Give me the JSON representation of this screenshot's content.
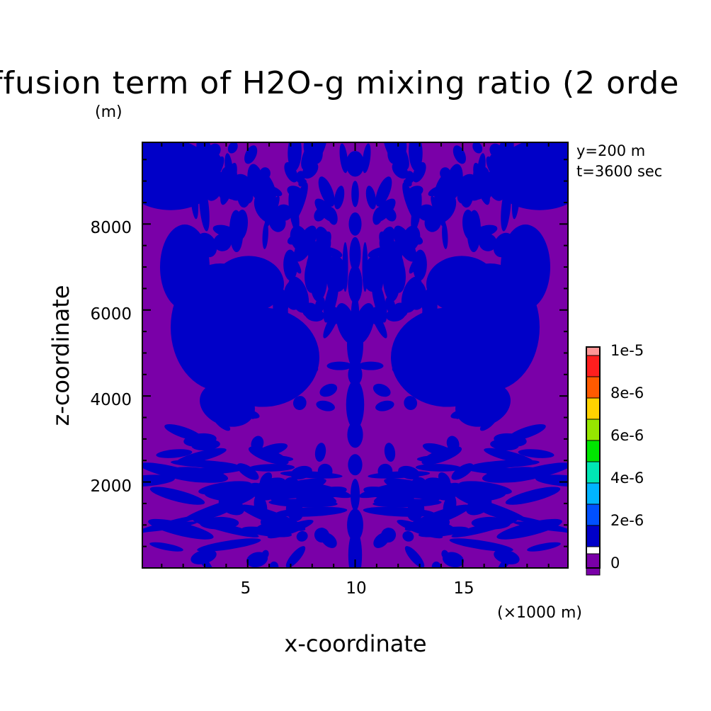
{
  "chart_data": {
    "type": "heatmap",
    "title": "ffusion term of H2O-g mixing ratio (2 orde",
    "ylabel": "z-coordinate",
    "yunit": "(m)",
    "xlabel": "x-coordinate",
    "xunit": "(×1000 m)",
    "annotations": [
      "y=200 m",
      "t=3600 sec"
    ],
    "xlim": [
      0.1,
      19.9
    ],
    "ylim": [
      0,
      9900
    ],
    "xticks": [
      5,
      10,
      15
    ],
    "yticks": [
      2000,
      4000,
      6000,
      8000
    ],
    "colorbar": {
      "levels": [
        0,
        1e-06,
        2e-06,
        3e-06,
        4e-06,
        5e-06,
        6e-06,
        7e-06,
        8e-06,
        9e-06,
        1e-05
      ],
      "labels": [
        "0",
        "2e-6",
        "4e-6",
        "6e-6",
        "8e-6",
        "1e-5"
      ],
      "colors": [
        "#7a00a8",
        "#0000c8",
        "#0050ff",
        "#00b4ff",
        "#00e6b4",
        "#00e600",
        "#96e600",
        "#ffd200",
        "#ff5a00",
        "#ff1e1e",
        "#ff9696"
      ]
    },
    "present_levels": [
      "0",
      "1e-6"
    ],
    "pattern": "symmetric about x=10; interleaved bands of value 0 (purple) and ~1e-6 (blue)"
  }
}
